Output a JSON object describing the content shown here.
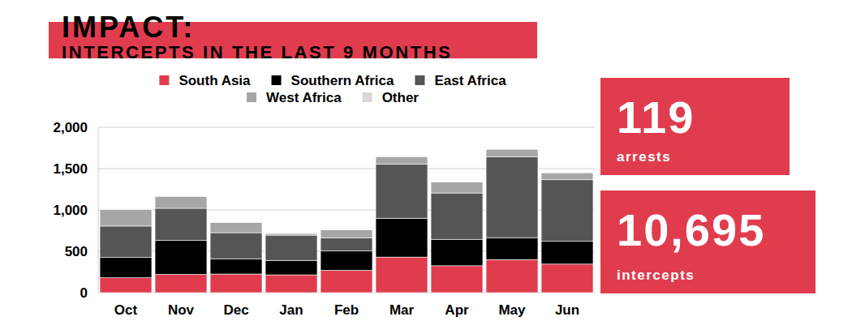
{
  "chart_data": {
    "type": "bar",
    "title": "IMPACT:",
    "subtitle": "INTERCEPTS IN THE LAST 9 MONTHS",
    "categories": [
      "Oct",
      "Nov",
      "Dec",
      "Jan",
      "Feb",
      "Mar",
      "Apr",
      "May",
      "Jun"
    ],
    "series": [
      {
        "name": "South Asia",
        "color": "#e03c4e",
        "values": [
          180,
          220,
          225,
          215,
          270,
          430,
          325,
          400,
          345
        ]
      },
      {
        "name": "Southern Africa",
        "color": "#000000",
        "values": [
          245,
          410,
          185,
          175,
          235,
          470,
          320,
          265,
          275
        ]
      },
      {
        "name": "East Africa",
        "color": "#555555",
        "values": [
          380,
          390,
          315,
          305,
          155,
          655,
          560,
          980,
          745
        ]
      },
      {
        "name": "West Africa",
        "color": "#a6a6a6",
        "values": [
          200,
          145,
          125,
          20,
          100,
          90,
          135,
          90,
          85
        ]
      },
      {
        "name": "Other",
        "color": "#d9d9d9",
        "values": [
          10,
          5,
          5,
          10,
          5,
          5,
          5,
          5,
          5
        ]
      }
    ],
    "ylim": [
      0,
      2000
    ],
    "yticks": [
      0,
      500,
      {
        "value": 1000,
        "label": "1,000"
      },
      {
        "value": 1500,
        "label": "1,500"
      },
      {
        "value": 2000,
        "label": "2,000"
      }
    ],
    "grid": true,
    "stacked": true,
    "legend": "top"
  },
  "stats": [
    {
      "value": "119",
      "label": "arrests"
    },
    {
      "value": "10,695",
      "label": "intercepts"
    }
  ]
}
